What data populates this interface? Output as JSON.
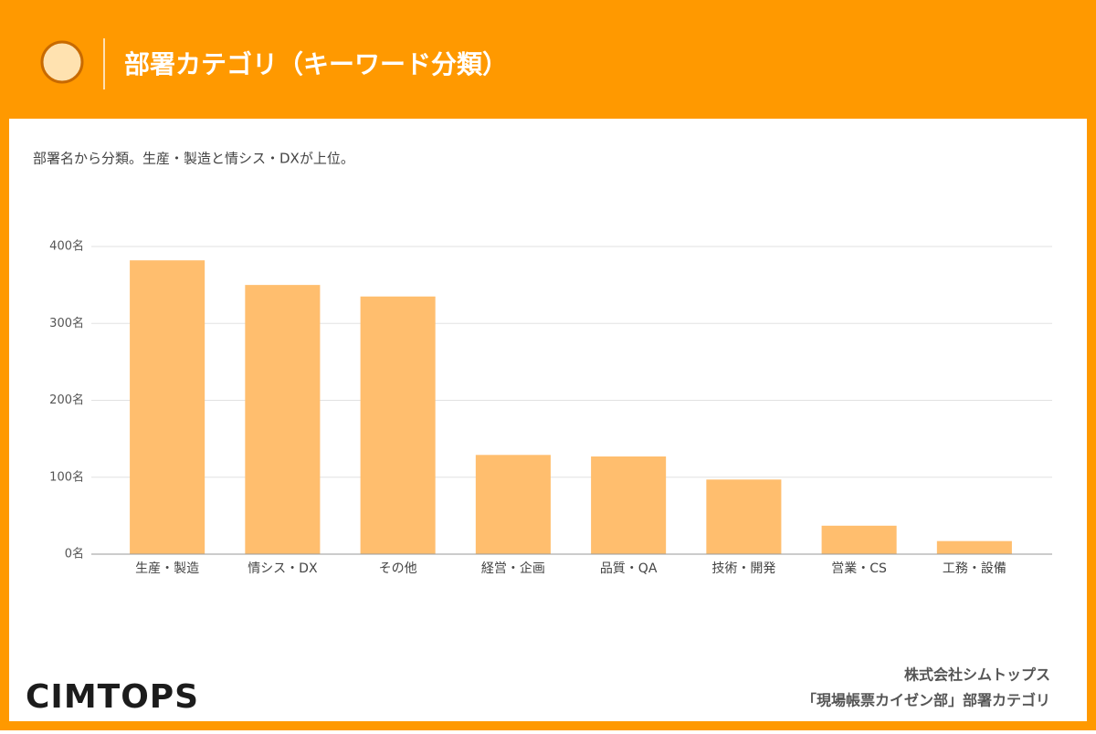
{
  "chart_data": {
    "type": "bar",
    "title": "部署カテゴリ（キーワード分類）",
    "subtitle": "部署名から分類。生産・製造と情シス・DXが上位。",
    "categories": [
      "生産・製造",
      "情シス・DX",
      "その他",
      "経営・企画",
      "品質・QA",
      "技術・開発",
      "営業・CS",
      "工務・設備"
    ],
    "values": [
      382,
      350,
      335,
      129,
      127,
      97,
      37,
      17
    ],
    "color": "#ffbe6e",
    "ylim": [
      0,
      400
    ],
    "yticks": [
      {
        "value": 0,
        "label": "0名"
      },
      {
        "value": 100,
        "label": "100名"
      },
      {
        "value": 200,
        "label": "200名"
      },
      {
        "value": 300,
        "label": "300名"
      },
      {
        "value": 400,
        "label": "400名"
      }
    ],
    "grid": true
  },
  "footer": {
    "company": "株式会社シムトップス",
    "source": "「現場帳票カイゼン部」部署カテゴリ"
  },
  "logo": "CIMTOPS"
}
